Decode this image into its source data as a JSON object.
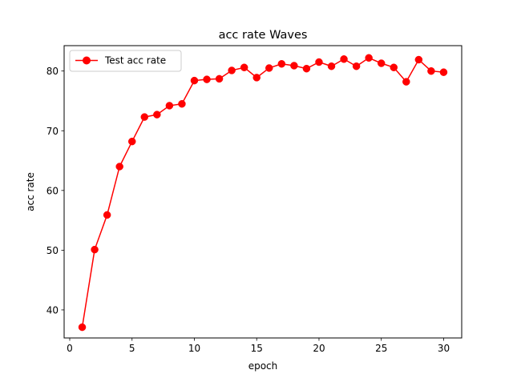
{
  "chart_data": {
    "type": "line",
    "title": "acc rate Waves",
    "xlabel": "epoch",
    "ylabel": "acc rate",
    "xlim": [
      -0.45,
      31.45
    ],
    "ylim": [
      35.3,
      84.25
    ],
    "xticks": [
      0,
      5,
      10,
      15,
      20,
      25,
      30
    ],
    "yticks": [
      40,
      50,
      60,
      70,
      80
    ],
    "grid": false,
    "legend_position": "upper-left",
    "series": [
      {
        "name": "Test acc rate",
        "color": "#ff0000",
        "marker": "circle",
        "x": [
          1,
          2,
          3,
          4,
          5,
          6,
          7,
          8,
          9,
          10,
          11,
          12,
          13,
          14,
          15,
          16,
          17,
          18,
          19,
          20,
          21,
          22,
          23,
          24,
          25,
          26,
          27,
          28,
          29,
          30
        ],
        "y": [
          37.1,
          50.1,
          55.9,
          64.0,
          68.2,
          72.3,
          72.7,
          74.2,
          74.5,
          78.4,
          78.6,
          78.7,
          80.1,
          80.6,
          78.9,
          80.5,
          81.2,
          80.9,
          80.4,
          81.5,
          80.8,
          82.0,
          80.8,
          82.2,
          81.3,
          80.6,
          78.2,
          81.9,
          80.0,
          79.8
        ]
      }
    ]
  }
}
